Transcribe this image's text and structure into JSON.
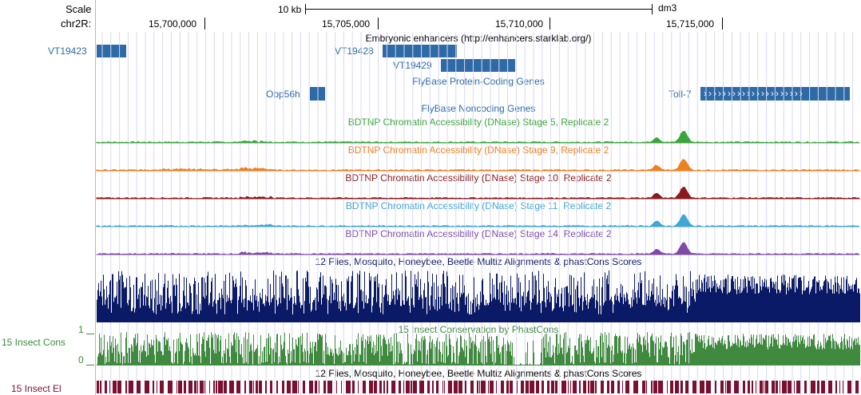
{
  "ruler": {
    "scale_label": "Scale",
    "chrom_label": "chr2R:",
    "scale_bar_label": "10 kb",
    "assembly": "dm3",
    "ticks": [
      "15,700,000",
      "15,705,000",
      "15,710,000",
      "15,715,000"
    ]
  },
  "tracks": {
    "enhancers": {
      "title": "Embryonic enhancers (http://enhancers.starklab.org/)",
      "items": [
        "VT19423",
        "VT19428",
        "VT19429"
      ]
    },
    "coding_genes": {
      "title": "FlyBase Protein-Coding Genes",
      "items": [
        "Obp56h",
        "Toll-7"
      ],
      "strand_glyph": "›››››››››››››››››››››"
    },
    "noncoding": {
      "title": "FlyBase Noncoding Genes"
    },
    "dnase": [
      {
        "title": "BDTNP Chromatin Accessibility (DNase) Stage 5, Replicate 2",
        "color": "#3aa53a"
      },
      {
        "title": "BDTNP Chromatin Accessibility (DNase) Stage 9, Replicate 2",
        "color": "#f07f1e"
      },
      {
        "title": "BDTNP Chromatin Accessibility (DNase) Stage 10, Replicate 2",
        "color": "#8b1a1a"
      },
      {
        "title": "BDTNP Chromatin Accessibility (DNase) Stage 11, Replicate 2",
        "color": "#3fa6d6"
      },
      {
        "title": "BDTNP Chromatin Accessibility (DNase) Stage 14, Replicate 2",
        "color": "#7d4aa8"
      }
    ],
    "multiz": {
      "title": "12 Flies, Mosquito, Honeybee, Beetle Multiz Alignments & phastCons Scores",
      "color": "#0b1a66"
    },
    "phastcons": {
      "title": "15 Insect Conservation by PhastCons",
      "side_label": "15 Insect Cons",
      "axis_max": "1",
      "axis_min": "0",
      "color": "#3f8a3f"
    },
    "elements": {
      "title": "12 Flies, Mosquito, Honeybee, Beetle Multiz Alignments & phastCons Scores",
      "side_label": "15 Insect El",
      "color": "#7a1030"
    }
  },
  "colors": {
    "feature": "#2d6aa6",
    "grid": "#d9d9f2",
    "highlight_line": "#f2a0a0"
  }
}
